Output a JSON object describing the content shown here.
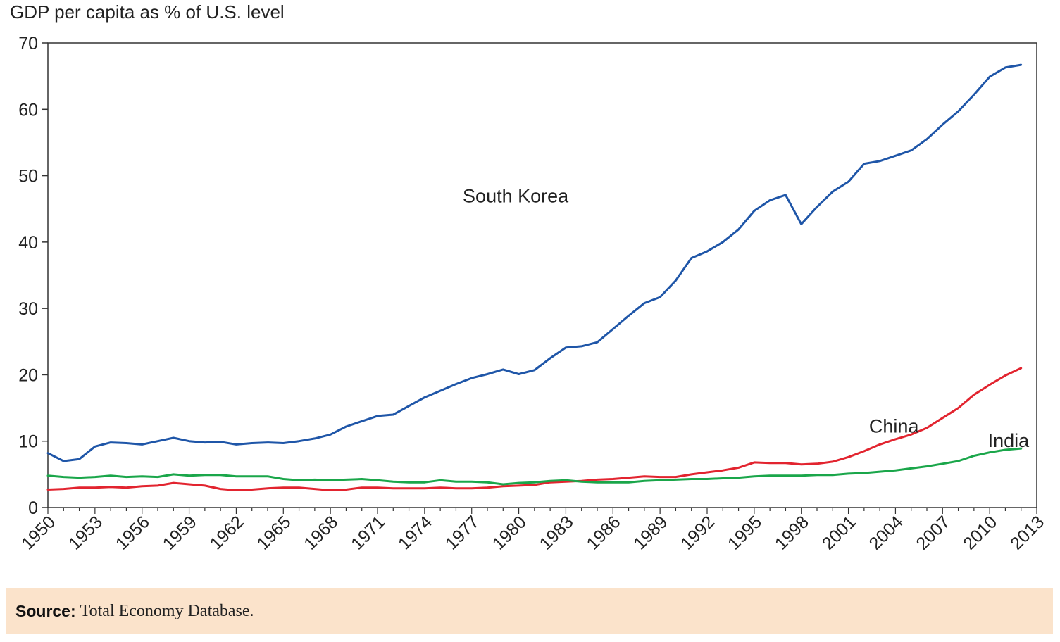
{
  "chart_data": {
    "type": "line",
    "ylabel": "GDP per capita as % of U.S. level",
    "xlabel": "",
    "ylim": [
      0,
      70
    ],
    "xlim": [
      1950,
      2013
    ],
    "yticks": [
      0,
      10,
      20,
      30,
      40,
      50,
      60,
      70
    ],
    "xticks": [
      1950,
      1953,
      1956,
      1959,
      1962,
      1965,
      1968,
      1971,
      1974,
      1977,
      1980,
      1983,
      1986,
      1989,
      1992,
      1995,
      1998,
      2001,
      2004,
      2007,
      2010,
      2013
    ],
    "grid": false,
    "x": [
      1950,
      1951,
      1952,
      1953,
      1954,
      1955,
      1956,
      1957,
      1958,
      1959,
      1960,
      1961,
      1962,
      1963,
      1964,
      1965,
      1966,
      1967,
      1968,
      1969,
      1970,
      1971,
      1972,
      1973,
      1974,
      1975,
      1976,
      1977,
      1978,
      1979,
      1980,
      1981,
      1982,
      1983,
      1984,
      1985,
      1986,
      1987,
      1988,
      1989,
      1990,
      1991,
      1992,
      1993,
      1994,
      1995,
      1996,
      1997,
      1998,
      1999,
      2000,
      2001,
      2002,
      2003,
      2004,
      2005,
      2006,
      2007,
      2008,
      2009,
      2010,
      2011,
      2012
    ],
    "series": [
      {
        "name": "South Korea",
        "color": "#1f56a8",
        "values": [
          8.2,
          7.0,
          7.3,
          9.2,
          9.8,
          9.7,
          9.5,
          10.0,
          10.5,
          10.0,
          9.8,
          9.9,
          9.5,
          9.7,
          9.8,
          9.7,
          10.0,
          10.4,
          11.0,
          12.2,
          13.0,
          13.8,
          14.0,
          15.3,
          16.6,
          17.6,
          18.6,
          19.5,
          20.1,
          20.8,
          20.1,
          20.7,
          22.5,
          24.1,
          24.3,
          24.9,
          26.9,
          28.9,
          30.8,
          31.7,
          34.2,
          37.6,
          38.6,
          40.0,
          41.9,
          44.7,
          46.3,
          47.1,
          42.7,
          45.3,
          47.6,
          49.1,
          51.8,
          52.2,
          53.0,
          53.8,
          55.5,
          57.7,
          59.7,
          62.2,
          64.9,
          66.3,
          66.7
        ]
      },
      {
        "name": "China",
        "color": "#e2242f",
        "values": [
          2.7,
          2.8,
          3.0,
          3.0,
          3.1,
          3.0,
          3.2,
          3.3,
          3.7,
          3.5,
          3.3,
          2.8,
          2.6,
          2.7,
          2.9,
          3.0,
          3.0,
          2.8,
          2.6,
          2.7,
          3.0,
          3.0,
          2.9,
          2.9,
          2.9,
          3.0,
          2.9,
          2.9,
          3.0,
          3.2,
          3.3,
          3.4,
          3.8,
          3.9,
          4.0,
          4.2,
          4.3,
          4.5,
          4.7,
          4.6,
          4.6,
          5.0,
          5.3,
          5.6,
          6.0,
          6.8,
          6.7,
          6.7,
          6.5,
          6.6,
          6.9,
          7.6,
          8.5,
          9.5,
          10.3,
          11.0,
          12.0,
          13.5,
          15.0,
          17.0,
          18.5,
          19.9,
          21.0
        ]
      },
      {
        "name": "India",
        "color": "#1aa64a",
        "values": [
          4.8,
          4.6,
          4.5,
          4.6,
          4.8,
          4.6,
          4.7,
          4.6,
          5.0,
          4.8,
          4.9,
          4.9,
          4.7,
          4.7,
          4.7,
          4.3,
          4.1,
          4.2,
          4.1,
          4.2,
          4.3,
          4.1,
          3.9,
          3.8,
          3.8,
          4.1,
          3.9,
          3.9,
          3.8,
          3.5,
          3.7,
          3.8,
          4.0,
          4.1,
          3.9,
          3.8,
          3.8,
          3.8,
          4.0,
          4.1,
          4.2,
          4.3,
          4.3,
          4.4,
          4.5,
          4.7,
          4.8,
          4.8,
          4.8,
          4.9,
          4.9,
          5.1,
          5.2,
          5.4,
          5.6,
          5.9,
          6.2,
          6.6,
          7.0,
          7.8,
          8.3,
          8.7,
          8.9
        ]
      }
    ]
  },
  "source": {
    "label": "Source:",
    "text": "Total Economy Database."
  }
}
